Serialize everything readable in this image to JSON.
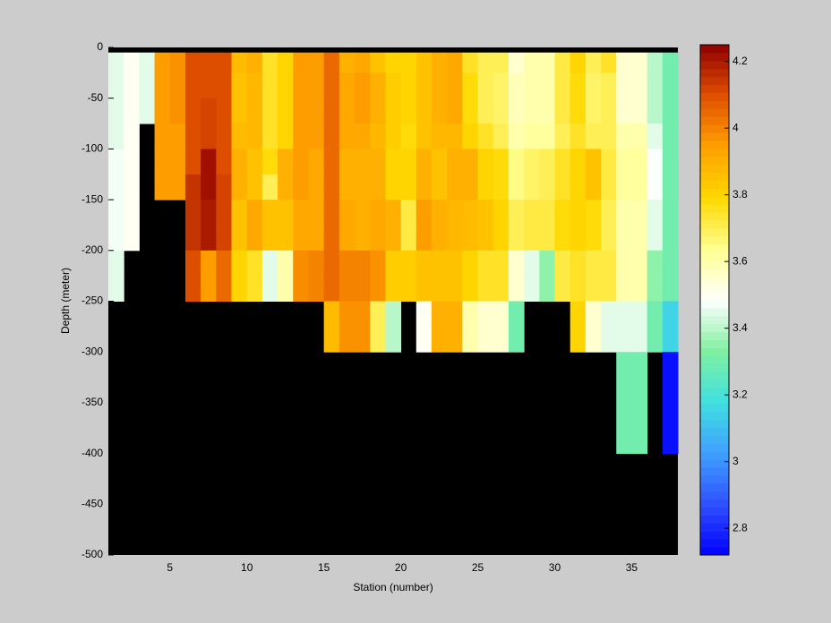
{
  "chart_data": {
    "type": "heatmap",
    "xlabel": "Station (number)",
    "ylabel": "Depth (meter)",
    "x_edges": [
      1,
      2,
      3,
      4,
      5,
      6,
      7,
      8,
      9,
      10,
      11,
      12,
      13,
      14,
      15,
      16,
      17,
      18,
      19,
      20,
      21,
      22,
      23,
      24,
      25,
      26,
      27,
      28,
      29,
      30,
      31,
      32,
      33,
      34,
      35,
      36,
      37,
      38
    ],
    "y_edges": [
      0,
      -5,
      -25,
      -50,
      -75,
      -100,
      -125,
      -150,
      -175,
      -200,
      -225,
      -250,
      -300,
      -400,
      -500
    ],
    "xlim": [
      1,
      38
    ],
    "ylim": [
      -500,
      0
    ],
    "xticks": [
      5,
      10,
      15,
      20,
      25,
      30,
      35
    ],
    "yticks": [
      -500,
      -450,
      -400,
      -350,
      -300,
      -250,
      -200,
      -150,
      -100,
      -50,
      0
    ],
    "missing_color": "#000000",
    "colormap": [
      "#0000ff",
      "#3050ff",
      "#40a0ff",
      "#40e0e0",
      "#80f0a0",
      "#ffffff",
      "#ffff90",
      "#ffd800",
      "#ffa000",
      "#e05000",
      "#900000"
    ],
    "clim": [
      2.72,
      4.25
    ],
    "cticks": [
      2.8,
      3,
      3.2,
      3.4,
      3.6,
      3.8,
      4,
      4.2
    ],
    "z": [
      [
        null,
        3.45,
        3.45,
        3.45,
        3.45,
        3.47,
        3.47,
        3.47,
        3.47,
        3.45,
        3.45,
        null,
        null,
        null
      ],
      [
        null,
        3.5,
        3.5,
        3.5,
        3.5,
        3.5,
        3.5,
        3.5,
        3.5,
        null,
        null,
        null,
        null,
        null
      ],
      [
        null,
        3.45,
        3.45,
        3.45,
        null,
        null,
        null,
        null,
        null,
        null,
        null,
        null,
        null,
        null
      ],
      [
        null,
        3.95,
        3.95,
        3.95,
        3.95,
        3.95,
        3.95,
        null,
        null,
        null,
        null,
        null,
        null,
        null
      ],
      [
        null,
        3.97,
        3.97,
        3.97,
        3.95,
        3.95,
        3.95,
        null,
        null,
        null,
        null,
        null,
        null,
        null
      ],
      [
        null,
        4.1,
        4.1,
        4.1,
        4.1,
        4.1,
        4.15,
        4.15,
        4.15,
        4.1,
        4.1,
        null,
        null,
        null
      ],
      [
        null,
        4.1,
        4.1,
        4.12,
        4.12,
        4.22,
        4.22,
        4.2,
        4.2,
        3.95,
        3.95,
        null,
        null,
        null
      ],
      [
        null,
        4.1,
        4.1,
        4.1,
        4.1,
        4.1,
        4.12,
        4.12,
        4.12,
        4.05,
        4.05,
        null,
        null,
        null
      ],
      [
        null,
        3.87,
        3.85,
        3.85,
        3.87,
        3.9,
        3.9,
        3.85,
        3.85,
        3.8,
        3.8,
        null,
        null,
        null
      ],
      [
        null,
        3.9,
        3.88,
        3.88,
        3.88,
        3.85,
        3.85,
        3.92,
        3.92,
        3.75,
        3.75,
        null,
        null,
        null
      ],
      [
        null,
        3.75,
        3.75,
        3.75,
        3.75,
        3.78,
        3.7,
        3.85,
        3.85,
        3.45,
        3.45,
        null,
        null,
        null
      ],
      [
        null,
        3.8,
        3.8,
        3.8,
        3.8,
        3.9,
        3.9,
        3.85,
        3.85,
        3.6,
        3.6,
        null,
        null,
        null
      ],
      [
        null,
        3.95,
        3.95,
        3.95,
        3.95,
        3.95,
        3.95,
        3.92,
        3.92,
        3.98,
        3.98,
        null,
        null,
        null
      ],
      [
        null,
        3.95,
        3.95,
        3.95,
        3.95,
        3.92,
        3.92,
        3.92,
        3.92,
        4.0,
        4.0,
        null,
        null,
        null
      ],
      [
        null,
        4.05,
        4.05,
        4.05,
        4.05,
        4.05,
        4.05,
        4.05,
        4.05,
        4.05,
        4.05,
        3.87,
        null,
        null
      ],
      [
        null,
        3.9,
        3.92,
        3.92,
        3.92,
        3.9,
        3.9,
        3.92,
        3.92,
        4.0,
        4.0,
        3.97,
        null,
        null
      ],
      [
        null,
        3.92,
        3.95,
        3.95,
        3.92,
        3.9,
        3.9,
        3.9,
        3.9,
        4.0,
        4.0,
        3.97,
        null,
        null
      ],
      [
        null,
        3.85,
        3.9,
        3.9,
        3.88,
        3.9,
        3.9,
        3.92,
        3.92,
        3.97,
        3.97,
        3.7,
        null,
        null
      ],
      [
        null,
        3.8,
        3.82,
        3.82,
        3.82,
        3.8,
        3.8,
        3.9,
        3.9,
        3.82,
        3.82,
        3.4,
        null,
        null
      ],
      [
        null,
        3.8,
        3.8,
        3.8,
        3.78,
        3.8,
        3.8,
        3.72,
        3.72,
        3.82,
        3.82,
        null,
        null,
        null
      ],
      [
        null,
        3.85,
        3.85,
        3.85,
        3.85,
        3.9,
        3.9,
        3.95,
        3.95,
        3.85,
        3.85,
        3.5,
        null,
        null
      ],
      [
        null,
        3.9,
        3.9,
        3.9,
        3.88,
        3.85,
        3.85,
        3.9,
        3.9,
        3.85,
        3.85,
        3.9,
        null,
        null
      ],
      [
        null,
        3.92,
        3.92,
        3.92,
        3.88,
        3.9,
        3.9,
        3.88,
        3.88,
        3.85,
        3.85,
        3.9,
        null,
        null
      ],
      [
        null,
        3.75,
        3.78,
        3.78,
        3.8,
        3.9,
        3.9,
        3.87,
        3.87,
        3.8,
        3.8,
        3.6,
        null,
        null
      ],
      [
        null,
        3.7,
        3.7,
        3.7,
        3.75,
        3.8,
        3.8,
        3.85,
        3.85,
        3.75,
        3.75,
        3.55,
        null,
        null
      ],
      [
        null,
        3.7,
        3.68,
        3.68,
        3.7,
        3.78,
        3.78,
        3.8,
        3.8,
        3.75,
        3.75,
        3.55,
        null,
        null
      ],
      [
        null,
        3.55,
        3.58,
        3.58,
        3.6,
        3.65,
        3.65,
        3.7,
        3.7,
        3.55,
        3.55,
        3.3,
        null,
        null
      ],
      [
        null,
        3.6,
        3.6,
        3.6,
        3.62,
        3.68,
        3.68,
        3.72,
        3.72,
        3.45,
        3.45,
        null,
        null,
        null
      ],
      [
        null,
        3.6,
        3.6,
        3.6,
        3.62,
        3.7,
        3.7,
        3.72,
        3.72,
        3.35,
        3.35,
        null,
        null,
        null
      ],
      [
        null,
        3.72,
        3.72,
        3.72,
        3.7,
        3.75,
        3.75,
        3.78,
        3.78,
        3.72,
        3.72,
        null,
        null,
        null
      ],
      [
        null,
        3.8,
        3.78,
        3.78,
        3.75,
        3.8,
        3.8,
        3.8,
        3.8,
        3.75,
        3.75,
        3.8,
        null,
        null
      ],
      [
        null,
        3.7,
        3.68,
        3.68,
        3.7,
        3.85,
        3.85,
        3.78,
        3.78,
        3.72,
        3.72,
        3.55,
        null,
        null
      ],
      [
        null,
        3.75,
        3.7,
        3.7,
        3.7,
        3.72,
        3.72,
        3.7,
        3.7,
        3.72,
        3.72,
        3.45,
        null,
        null
      ],
      [
        null,
        3.55,
        3.55,
        3.55,
        3.6,
        3.62,
        3.62,
        3.6,
        3.6,
        3.6,
        3.6,
        3.45,
        3.3,
        null
      ],
      [
        null,
        3.55,
        3.55,
        3.55,
        3.6,
        3.62,
        3.62,
        3.6,
        3.6,
        3.6,
        3.6,
        3.45,
        3.3,
        null
      ],
      [
        null,
        3.4,
        3.4,
        3.4,
        3.45,
        3.48,
        3.48,
        3.45,
        3.45,
        3.35,
        3.35,
        3.3,
        null,
        null
      ],
      [
        null,
        3.3,
        3.3,
        3.3,
        3.3,
        3.3,
        3.3,
        3.3,
        3.3,
        3.3,
        3.3,
        3.15,
        2.75,
        null
      ]
    ]
  }
}
